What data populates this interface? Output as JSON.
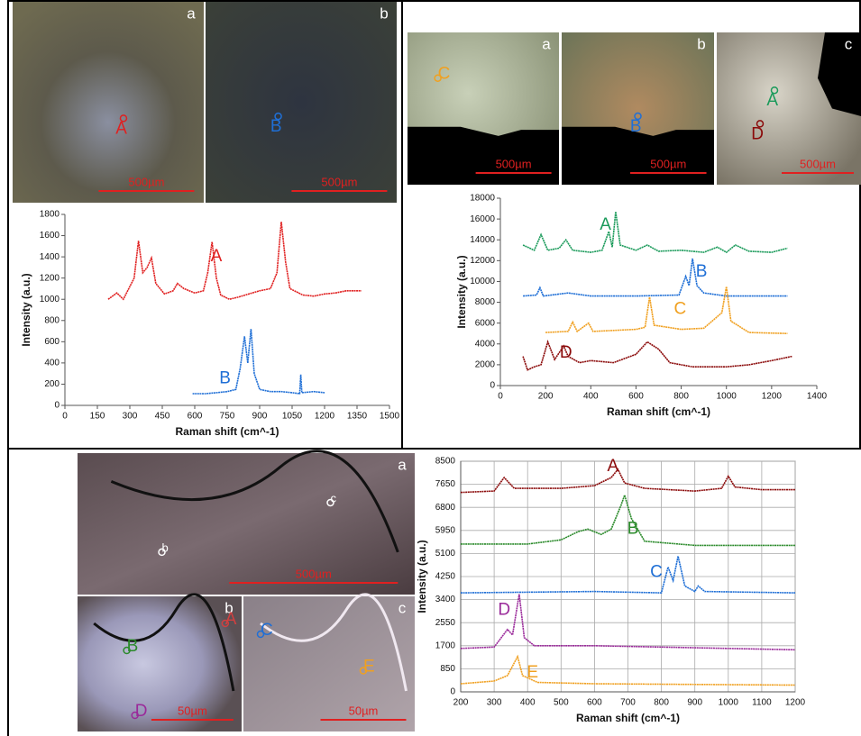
{
  "chart_data": [
    {
      "type": "line",
      "x_label": "Raman shift (cm^-1)",
      "y_label": "Intensity (a.u.)",
      "xlim": [
        0,
        1500
      ],
      "xticks": [
        0,
        150,
        300,
        450,
        600,
        750,
        900,
        1050,
        1200,
        1350,
        1500
      ],
      "ylim": [
        0,
        1800
      ],
      "yticks": [
        0,
        200,
        400,
        600,
        800,
        1000,
        1200,
        1400,
        1600,
        1800
      ],
      "grid": false,
      "series": [
        {
          "name": "A",
          "color": "#e02020",
          "x": [
            200,
            240,
            270,
            320,
            340,
            360,
            380,
            400,
            420,
            460,
            500,
            520,
            550,
            600,
            640,
            660,
            680,
            700,
            720,
            760,
            800,
            850,
            900,
            950,
            980,
            1000,
            1020,
            1040,
            1100,
            1150,
            1200,
            1250,
            1300,
            1370
          ],
          "values": [
            1000,
            1060,
            1000,
            1200,
            1550,
            1250,
            1300,
            1390,
            1150,
            1050,
            1080,
            1150,
            1100,
            1060,
            1080,
            1250,
            1540,
            1200,
            1040,
            1000,
            1020,
            1050,
            1080,
            1100,
            1250,
            1730,
            1350,
            1100,
            1040,
            1030,
            1050,
            1060,
            1080,
            1080
          ]
        },
        {
          "name": "B",
          "color": "#1f6fd6",
          "x": [
            590,
            650,
            700,
            750,
            790,
            810,
            830,
            845,
            860,
            875,
            900,
            950,
            1000,
            1050,
            1085,
            1090,
            1095,
            1150,
            1200
          ],
          "values": [
            110,
            110,
            120,
            130,
            150,
            350,
            650,
            400,
            720,
            300,
            150,
            130,
            130,
            120,
            110,
            290,
            120,
            130,
            120
          ]
        }
      ]
    },
    {
      "type": "line",
      "x_label": "Raman shift (cm^-1)",
      "y_label": "Intensity (a.u.)",
      "xlim": [
        0,
        1400
      ],
      "xticks": [
        0,
        200,
        400,
        600,
        800,
        1000,
        1200,
        1400
      ],
      "ylim": [
        0,
        18000
      ],
      "yticks": [
        0,
        2000,
        4000,
        6000,
        8000,
        10000,
        12000,
        14000,
        16000,
        18000
      ],
      "grid": false,
      "series": [
        {
          "name": "A",
          "color": "#1a9a5a",
          "x": [
            100,
            150,
            180,
            210,
            260,
            290,
            320,
            400,
            450,
            480,
            495,
            510,
            530,
            600,
            650,
            700,
            800,
            900,
            960,
            1000,
            1040,
            1100,
            1200,
            1270
          ],
          "values": [
            13500,
            13000,
            14500,
            13000,
            13200,
            14000,
            13000,
            12800,
            13000,
            14800,
            13300,
            16700,
            13500,
            13000,
            13500,
            12900,
            13000,
            12800,
            13300,
            12800,
            13500,
            12900,
            12800,
            13200
          ]
        },
        {
          "name": "B",
          "color": "#1f6fd6",
          "x": [
            100,
            160,
            175,
            190,
            300,
            400,
            600,
            790,
            820,
            835,
            850,
            870,
            900,
            1000,
            1270
          ],
          "values": [
            8600,
            8700,
            9400,
            8600,
            8900,
            8600,
            8600,
            8700,
            10500,
            9600,
            12200,
            9600,
            8900,
            8600,
            8600
          ]
        },
        {
          "name": "C",
          "color": "#f0a020",
          "x": [
            200,
            300,
            320,
            340,
            390,
            410,
            500,
            600,
            640,
            660,
            680,
            800,
            900,
            980,
            1000,
            1020,
            1100,
            1270
          ],
          "values": [
            5100,
            5200,
            6100,
            5200,
            6000,
            5200,
            5300,
            5400,
            5600,
            8500,
            5800,
            5400,
            5500,
            7000,
            9500,
            6200,
            5100,
            5000
          ]
        },
        {
          "name": "D",
          "color": "#8b0a0a",
          "x": [
            100,
            120,
            150,
            180,
            210,
            240,
            280,
            300,
            350,
            400,
            500,
            600,
            650,
            700,
            750,
            850,
            1000,
            1100,
            1200,
            1290
          ],
          "values": [
            2800,
            1500,
            1800,
            2000,
            4200,
            2500,
            3800,
            2800,
            2200,
            2400,
            2200,
            3000,
            4200,
            3500,
            2200,
            1800,
            1800,
            2000,
            2400,
            2800
          ]
        }
      ]
    },
    {
      "type": "line",
      "x_label": "Raman shift (cm^-1)",
      "y_label": "Intensity (a.u.)",
      "xlim": [
        200,
        1200
      ],
      "xticks": [
        200,
        300,
        400,
        500,
        600,
        700,
        800,
        900,
        1000,
        1100,
        1200
      ],
      "ylim": [
        0,
        8500
      ],
      "yticks": [
        0,
        850,
        1700,
        2550,
        3400,
        4250,
        5100,
        5950,
        6800,
        7650,
        8500
      ],
      "grid": true,
      "series": [
        {
          "name": "A",
          "color": "#8b0a0a",
          "x": [
            200,
            300,
            330,
            360,
            500,
            600,
            650,
            670,
            690,
            750,
            900,
            980,
            1000,
            1020,
            1100,
            1200
          ],
          "values": [
            7350,
            7400,
            7900,
            7500,
            7500,
            7600,
            7900,
            8200,
            7700,
            7500,
            7400,
            7500,
            7950,
            7550,
            7450,
            7450
          ]
        },
        {
          "name": "B",
          "color": "#2a8a2a",
          "x": [
            200,
            400,
            500,
            550,
            580,
            620,
            650,
            680,
            690,
            710,
            750,
            900,
            1200
          ],
          "values": [
            5450,
            5450,
            5600,
            5900,
            6000,
            5800,
            6000,
            6900,
            7250,
            6400,
            5550,
            5400,
            5400
          ]
        },
        {
          "name": "C",
          "color": "#1f6fd6",
          "x": [
            200,
            600,
            800,
            820,
            835,
            850,
            870,
            900,
            910,
            930,
            1200
          ],
          "values": [
            3650,
            3700,
            3650,
            4600,
            4100,
            5000,
            3900,
            3700,
            3900,
            3700,
            3650
          ]
        },
        {
          "name": "D",
          "color": "#9a2a9a",
          "x": [
            200,
            300,
            340,
            355,
            375,
            390,
            420,
            600,
            1200
          ],
          "values": [
            1600,
            1650,
            2300,
            2100,
            3600,
            2000,
            1700,
            1700,
            1550
          ]
        },
        {
          "name": "E",
          "color": "#f0a020",
          "x": [
            200,
            300,
            340,
            370,
            385,
            430,
            600,
            1200
          ],
          "values": [
            300,
            400,
            600,
            1300,
            600,
            350,
            300,
            250
          ]
        }
      ]
    }
  ],
  "micrographs": [
    {
      "panels": [
        {
          "label": "a",
          "points": [
            "A"
          ],
          "scale": "500µm"
        },
        {
          "label": "b",
          "points": [
            "B"
          ],
          "scale": "500µm"
        }
      ]
    },
    {
      "panels": [
        {
          "label": "a",
          "points": [
            "C"
          ],
          "scale": "500µm"
        },
        {
          "label": "b",
          "points": [
            "B"
          ],
          "scale": "500µm"
        },
        {
          "label": "c",
          "points": [
            "A",
            "D"
          ],
          "scale": "500µm"
        }
      ]
    },
    {
      "panels": [
        {
          "label": "a",
          "points": [
            "b",
            "c"
          ],
          "scale": "500µm"
        },
        {
          "label": "b",
          "points": [
            "B",
            "D",
            "A"
          ],
          "scale": "50µm"
        },
        {
          "label": "c",
          "points": [
            "C",
            "E"
          ],
          "scale": "50µm"
        }
      ]
    }
  ]
}
